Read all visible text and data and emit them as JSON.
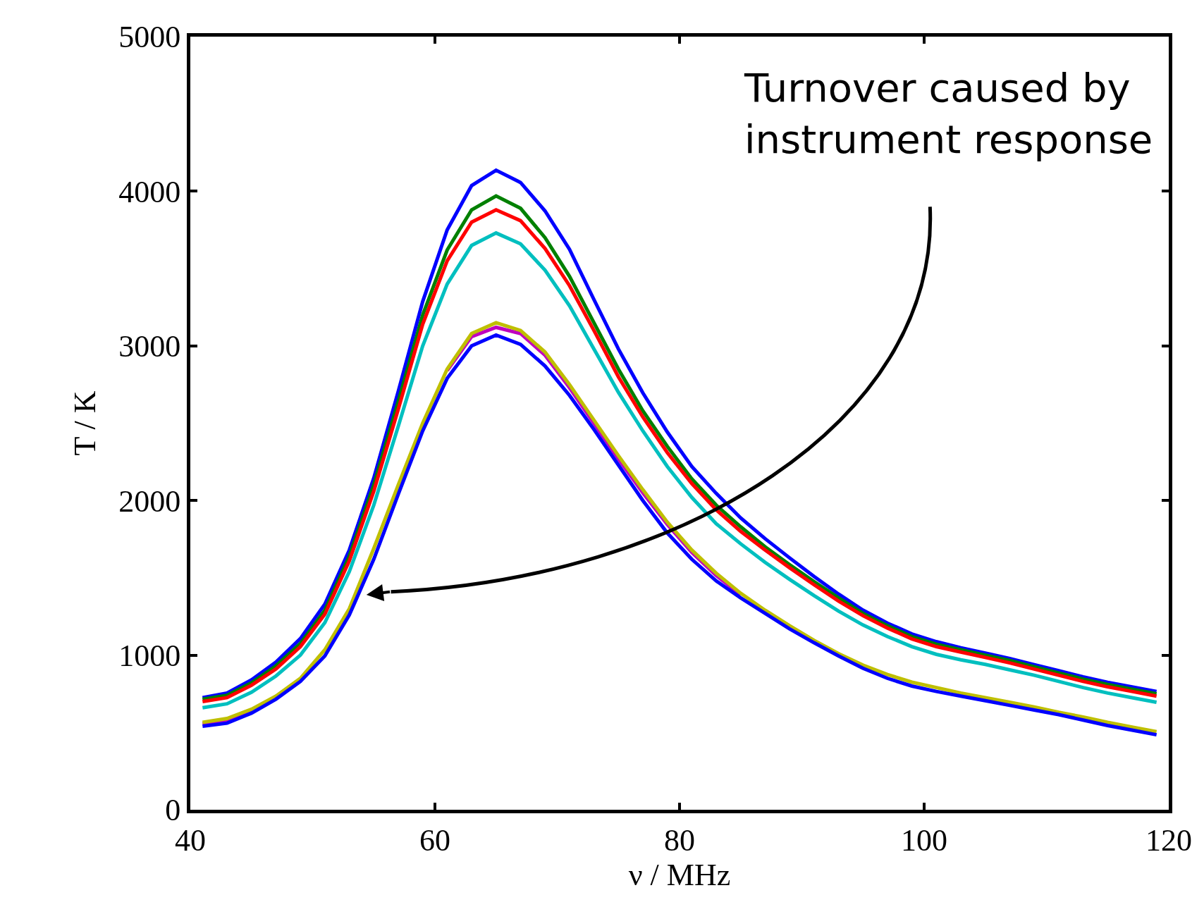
{
  "chart_data": {
    "type": "line",
    "xlabel": "ν / MHz",
    "ylabel": "T / K",
    "x": [
      41,
      43,
      45,
      47,
      49,
      51,
      53,
      55,
      57,
      59,
      61,
      63,
      65,
      67,
      69,
      71,
      73,
      75,
      77,
      79,
      81,
      83,
      85,
      87,
      89,
      91,
      93,
      95,
      97,
      99,
      101,
      103,
      105,
      107,
      109,
      111,
      113,
      115,
      117,
      119
    ],
    "xlim": [
      40,
      120
    ],
    "xticks": [
      40,
      60,
      80,
      100,
      120
    ],
    "ylim": [
      0,
      5000
    ],
    "yticks": [
      0,
      1000,
      2000,
      3000,
      4000,
      5000
    ],
    "marker": "none",
    "line_style": "solid",
    "annotations": [
      "Turnover caused by\ninstrument response"
    ],
    "series": [
      {
        "color": "#0000ff",
        "values": [
          725,
          755,
          840,
          955,
          1107,
          1330,
          1680,
          2145,
          2705,
          3287,
          3750,
          4037,
          4136,
          4057,
          3873,
          3625,
          3300,
          2980,
          2696,
          2443,
          2220,
          2046,
          1887,
          1753,
          1629,
          1509,
          1395,
          1291,
          1207,
          1137,
          1087,
          1048,
          1013,
          978,
          938,
          899,
          859,
          824,
          794,
          765
        ]
      },
      {
        "color": "#008000",
        "values": [
          715,
          740,
          820,
          930,
          1075,
          1290,
          1640,
          2100,
          2640,
          3200,
          3620,
          3880,
          3970,
          3890,
          3700,
          3450,
          3150,
          2850,
          2580,
          2350,
          2140,
          1970,
          1830,
          1700,
          1585,
          1475,
          1370,
          1270,
          1190,
          1120,
          1070,
          1035,
          1000,
          965,
          925,
          885,
          845,
          810,
          780,
          750
        ]
      },
      {
        "color": "#ff0000",
        "values": [
          700,
          725,
          805,
          910,
          1055,
          1265,
          1610,
          2060,
          2590,
          3140,
          3550,
          3800,
          3880,
          3810,
          3630,
          3390,
          3100,
          2800,
          2540,
          2310,
          2110,
          1940,
          1800,
          1680,
          1565,
          1455,
          1350,
          1255,
          1175,
          1105,
          1055,
          1020,
          985,
          950,
          910,
          870,
          830,
          795,
          765,
          735
        ]
      },
      {
        "color": "#00bfbf",
        "values": [
          660,
          685,
          760,
          865,
          1000,
          1210,
          1540,
          1970,
          2480,
          3000,
          3400,
          3650,
          3730,
          3660,
          3490,
          3260,
          2980,
          2700,
          2450,
          2220,
          2020,
          1850,
          1720,
          1600,
          1490,
          1385,
          1285,
          1195,
          1120,
          1055,
          1005,
          970,
          940,
          905,
          870,
          830,
          790,
          755,
          725,
          695
        ]
      },
      {
        "color": "#bf00bf",
        "values": [
          555,
          580,
          640,
          null,
          null,
          null,
          null,
          null,
          null,
          null,
          2840,
          3060,
          3120,
          3080,
          2940,
          2730,
          2500,
          2270,
          2050,
          1845,
          1665,
          1515,
          1390,
          null,
          null,
          null,
          null,
          null,
          null,
          null,
          null,
          null,
          null,
          null,
          null,
          null,
          null,
          null,
          null,
          null
        ]
      },
      {
        "color": "#bfbf00",
        "values": [
          565,
          590,
          650,
          735,
          850,
          1035,
          1300,
          1690,
          2100,
          2500,
          2850,
          3080,
          3150,
          3100,
          2960,
          2750,
          2520,
          2290,
          2070,
          1860,
          1680,
          1530,
          1400,
          1290,
          1190,
          1095,
          1010,
          935,
          875,
          825,
          790,
          755,
          725,
          695,
          665,
          630,
          600,
          565,
          535,
          505
        ]
      },
      {
        "color": "#0000ff",
        "values": [
          540,
          560,
          625,
          715,
          830,
          995,
          1260,
          1620,
          2040,
          2450,
          2790,
          3000,
          3070,
          3010,
          2870,
          2680,
          2460,
          2230,
          2000,
          1790,
          1620,
          1480,
          1370,
          1270,
          1170,
          1080,
          995,
          915,
          850,
          800,
          765,
          735,
          705,
          675,
          645,
          615,
          580,
          545,
          515,
          485
        ]
      }
    ]
  }
}
